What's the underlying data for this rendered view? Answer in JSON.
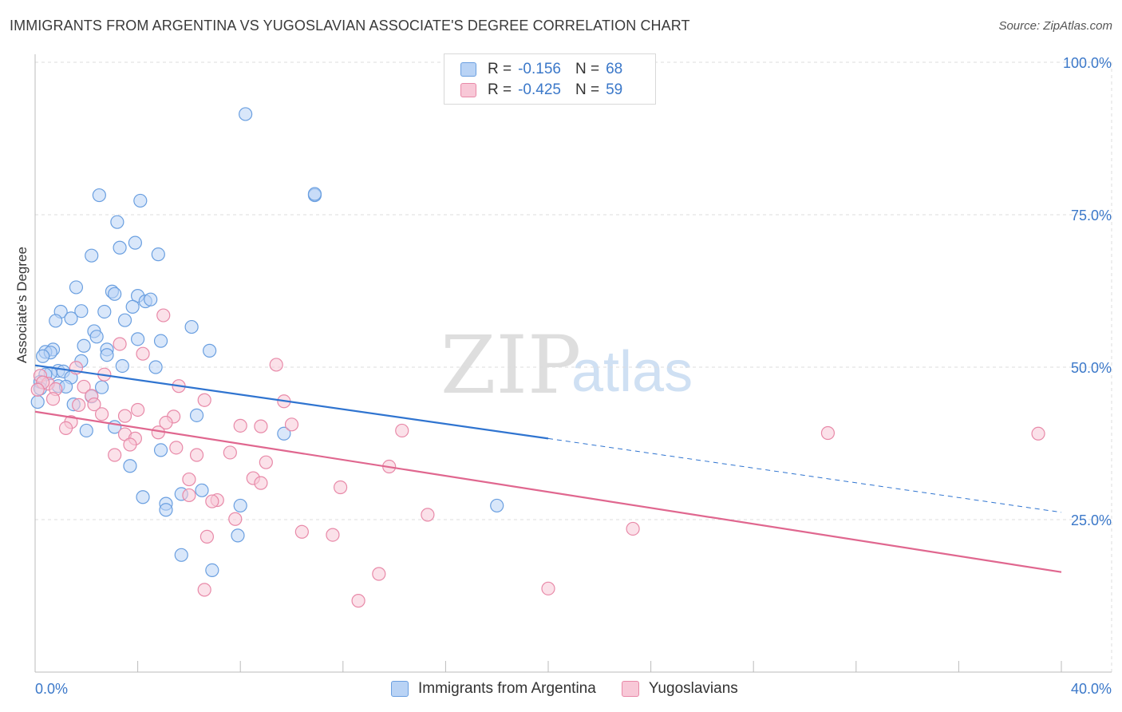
{
  "header": {
    "title": "IMMIGRANTS FROM ARGENTINA VS YUGOSLAVIAN ASSOCIATE'S DEGREE CORRELATION CHART",
    "source": "Source: ZipAtlas.com"
  },
  "watermark": {
    "zip": "ZIP",
    "atlas": "atlas"
  },
  "stats": [
    {
      "r_label": "R =",
      "r_value": "-0.156",
      "n_label": "N =",
      "n_value": "68",
      "color": "#6a9fe0",
      "fill": "#b9d3f5"
    },
    {
      "r_label": "R =",
      "r_value": "-0.425",
      "n_label": "N =",
      "n_value": "59",
      "color": "#e889a8",
      "fill": "#f8c8d7"
    }
  ],
  "chart_data": {
    "type": "scatter",
    "title": "IMMIGRANTS FROM ARGENTINA VS YUGOSLAVIAN ASSOCIATE'S DEGREE CORRELATION CHART",
    "xlabel": "",
    "ylabel": "Associate's Degree",
    "xlim": [
      0,
      40
    ],
    "ylim": [
      0,
      100
    ],
    "x_tick_labels": [
      "0.0%",
      "40.0%"
    ],
    "y_ticks": [
      25,
      50,
      75,
      100
    ],
    "y_tick_labels": [
      "25.0%",
      "50.0%",
      "75.0%",
      "100.0%"
    ],
    "grid": true,
    "legend_position": "bottom",
    "series": [
      {
        "name": "Immigrants from Argentina",
        "color": "#6a9fe0",
        "fill": "#b9d3f5",
        "trend": {
          "x0": 0,
          "y0": 50.3,
          "x1": 20,
          "y1": 38.3,
          "dash_to_x": 40,
          "dash_to_y": 26.2
        },
        "points": [
          [
            8.2,
            91.5
          ],
          [
            10.9,
            78.2
          ],
          [
            10.9,
            78.4
          ],
          [
            2.5,
            78.2
          ],
          [
            4.1,
            77.3
          ],
          [
            3.2,
            73.8
          ],
          [
            3.9,
            70.4
          ],
          [
            3.3,
            69.6
          ],
          [
            4.8,
            68.5
          ],
          [
            2.2,
            68.3
          ],
          [
            1.6,
            63.1
          ],
          [
            3.0,
            62.4
          ],
          [
            3.1,
            62.0
          ],
          [
            4.0,
            61.7
          ],
          [
            4.3,
            60.8
          ],
          [
            4.5,
            61.1
          ],
          [
            3.8,
            59.9
          ],
          [
            1.0,
            59.1
          ],
          [
            1.8,
            59.2
          ],
          [
            2.7,
            59.1
          ],
          [
            1.4,
            58.0
          ],
          [
            0.8,
            57.6
          ],
          [
            3.5,
            57.7
          ],
          [
            6.1,
            56.6
          ],
          [
            2.3,
            55.9
          ],
          [
            2.4,
            55.0
          ],
          [
            4.0,
            54.6
          ],
          [
            4.9,
            54.3
          ],
          [
            1.9,
            53.5
          ],
          [
            2.8,
            52.9
          ],
          [
            0.7,
            52.9
          ],
          [
            0.4,
            52.5
          ],
          [
            0.6,
            52.4
          ],
          [
            0.3,
            51.8
          ],
          [
            2.8,
            52.0
          ],
          [
            6.8,
            52.7
          ],
          [
            1.8,
            51.0
          ],
          [
            3.4,
            50.2
          ],
          [
            4.7,
            50.0
          ],
          [
            0.9,
            49.4
          ],
          [
            1.1,
            49.3
          ],
          [
            0.6,
            49.0
          ],
          [
            0.4,
            48.8
          ],
          [
            1.4,
            48.3
          ],
          [
            0.2,
            47.6
          ],
          [
            0.9,
            46.9
          ],
          [
            0.2,
            46.5
          ],
          [
            1.2,
            46.8
          ],
          [
            2.6,
            46.7
          ],
          [
            2.2,
            45.2
          ],
          [
            0.1,
            44.3
          ],
          [
            1.5,
            43.9
          ],
          [
            6.3,
            42.1
          ],
          [
            3.1,
            40.2
          ],
          [
            2.0,
            39.6
          ],
          [
            9.7,
            39.1
          ],
          [
            4.9,
            36.4
          ],
          [
            3.7,
            33.8
          ],
          [
            6.5,
            29.8
          ],
          [
            5.7,
            29.2
          ],
          [
            4.2,
            28.7
          ],
          [
            5.1,
            27.6
          ],
          [
            5.1,
            26.6
          ],
          [
            8.0,
            27.3
          ],
          [
            18.0,
            27.3
          ],
          [
            7.9,
            22.4
          ],
          [
            5.7,
            19.2
          ],
          [
            6.9,
            16.7
          ]
        ]
      },
      {
        "name": "Yugoslavians",
        "color": "#e889a8",
        "fill": "#f8c8d7",
        "trend": {
          "x0": 0,
          "y0": 42.7,
          "x1": 40,
          "y1": 16.4
        },
        "points": [
          [
            5.0,
            58.5
          ],
          [
            3.3,
            53.8
          ],
          [
            4.2,
            52.2
          ],
          [
            9.4,
            50.4
          ],
          [
            1.6,
            49.9
          ],
          [
            2.7,
            48.8
          ],
          [
            0.2,
            48.6
          ],
          [
            0.5,
            47.3
          ],
          [
            0.3,
            47.5
          ],
          [
            0.1,
            46.3
          ],
          [
            5.6,
            46.9
          ],
          [
            1.9,
            46.8
          ],
          [
            0.8,
            46.4
          ],
          [
            2.2,
            45.3
          ],
          [
            6.6,
            44.6
          ],
          [
            9.7,
            44.4
          ],
          [
            2.3,
            43.9
          ],
          [
            1.7,
            43.8
          ],
          [
            0.7,
            44.8
          ],
          [
            4.0,
            43.0
          ],
          [
            2.6,
            42.3
          ],
          [
            3.5,
            42.0
          ],
          [
            5.4,
            41.9
          ],
          [
            1.4,
            41.0
          ],
          [
            5.1,
            40.9
          ],
          [
            8.0,
            40.4
          ],
          [
            8.8,
            40.3
          ],
          [
            10.0,
            40.6
          ],
          [
            1.2,
            40.0
          ],
          [
            14.3,
            39.6
          ],
          [
            4.8,
            39.3
          ],
          [
            3.5,
            39.0
          ],
          [
            30.9,
            39.2
          ],
          [
            39.1,
            39.1
          ],
          [
            3.9,
            38.3
          ],
          [
            3.7,
            37.3
          ],
          [
            5.5,
            36.8
          ],
          [
            3.1,
            35.6
          ],
          [
            6.3,
            35.6
          ],
          [
            7.6,
            36.0
          ],
          [
            9.0,
            34.4
          ],
          [
            13.8,
            33.7
          ],
          [
            6.0,
            31.6
          ],
          [
            8.5,
            31.8
          ],
          [
            8.8,
            31.0
          ],
          [
            11.9,
            30.3
          ],
          [
            6.0,
            29.0
          ],
          [
            7.1,
            28.2
          ],
          [
            6.9,
            28.0
          ],
          [
            7.8,
            25.1
          ],
          [
            15.3,
            25.8
          ],
          [
            10.4,
            23.0
          ],
          [
            11.6,
            22.5
          ],
          [
            23.3,
            23.5
          ],
          [
            6.7,
            22.2
          ],
          [
            13.4,
            16.1
          ],
          [
            6.6,
            13.5
          ],
          [
            20.0,
            13.7
          ],
          [
            12.6,
            11.7
          ]
        ]
      }
    ]
  }
}
